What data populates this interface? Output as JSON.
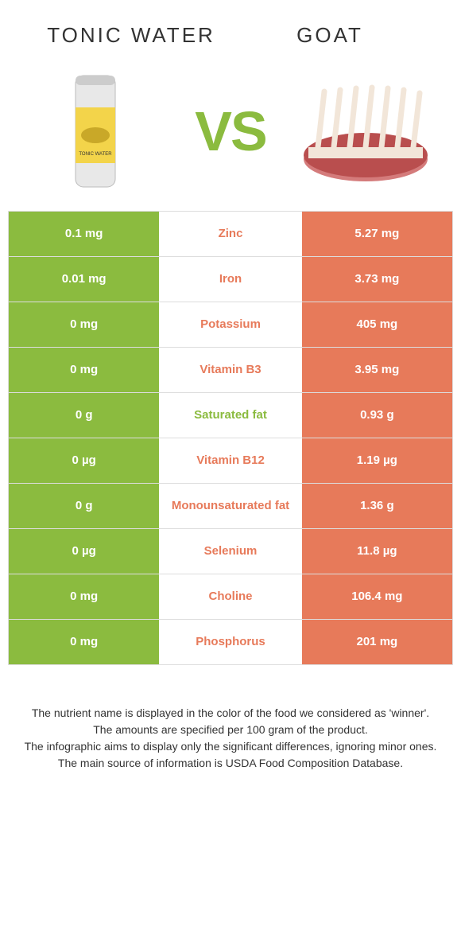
{
  "colors": {
    "left": "#8bbb3f",
    "right": "#e77a5a",
    "vs": "#8bbb3f",
    "text_dark": "#6b6b6b",
    "white": "#ffffff",
    "border": "#dddddd"
  },
  "header": {
    "left_title": "Tonic water",
    "right_title": "Goat",
    "vs_text": "VS"
  },
  "rows": [
    {
      "left": "0.1 mg",
      "name": "Zinc",
      "right": "5.27 mg",
      "winner": "right"
    },
    {
      "left": "0.01 mg",
      "name": "Iron",
      "right": "3.73 mg",
      "winner": "right"
    },
    {
      "left": "0 mg",
      "name": "Potassium",
      "right": "405 mg",
      "winner": "right"
    },
    {
      "left": "0 mg",
      "name": "Vitamin B3",
      "right": "3.95 mg",
      "winner": "right"
    },
    {
      "left": "0 g",
      "name": "Saturated fat",
      "right": "0.93 g",
      "winner": "left"
    },
    {
      "left": "0 µg",
      "name": "Vitamin B12",
      "right": "1.19 µg",
      "winner": "right"
    },
    {
      "left": "0 g",
      "name": "Monounsaturated fat",
      "right": "1.36 g",
      "winner": "right"
    },
    {
      "left": "0 µg",
      "name": "Selenium",
      "right": "11.8 µg",
      "winner": "right"
    },
    {
      "left": "0 mg",
      "name": "Choline",
      "right": "106.4 mg",
      "winner": "right"
    },
    {
      "left": "0 mg",
      "name": "Phosphorus",
      "right": "201 mg",
      "winner": "right"
    }
  ],
  "footer": {
    "line1": "The nutrient name is displayed in the color of the food we considered as 'winner'.",
    "line2": "The amounts are specified per 100 gram of the product.",
    "line3": "The infographic aims to display only the significant differences, ignoring minor ones.",
    "line4": "The main source of information is USDA Food Composition Database."
  }
}
